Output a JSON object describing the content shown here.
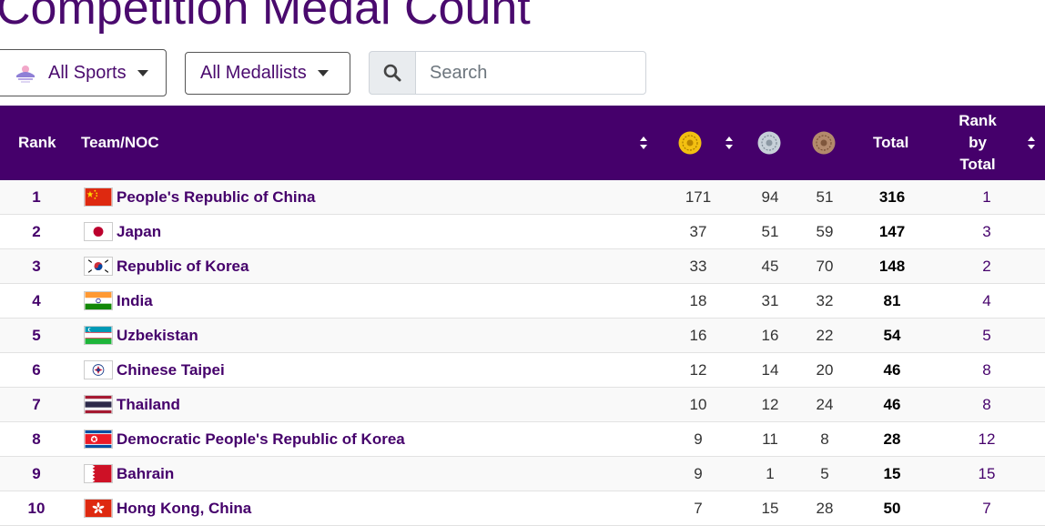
{
  "page": {
    "title": "Competition Medal Count"
  },
  "filters": {
    "sports_label": "All Sports",
    "medallists_label": "All Medallists",
    "search_placeholder": "Search",
    "search_value": ""
  },
  "table": {
    "headers": {
      "rank": "Rank",
      "team": "Team/NOC",
      "gold_icon": "gold-medal-icon",
      "silver_icon": "silver-medal-icon",
      "bronze_icon": "bronze-medal-icon",
      "total": "Total",
      "rank_by_total_1": "Rank",
      "rank_by_total_2": "by",
      "rank_by_total_3": "Total"
    },
    "colors": {
      "header_bg": "#45006b",
      "link": "#45006b",
      "gold": "#f3c011",
      "silver": "#c7d0d8",
      "bronze": "#b38a6c"
    },
    "rows": [
      {
        "rank": "1",
        "team": "People's Republic of China",
        "flag": "china-flag-icon",
        "gold": "171",
        "silver": "94",
        "bronze": "51",
        "total": "316",
        "rank_by_total": "1"
      },
      {
        "rank": "2",
        "team": "Japan",
        "flag": "japan-flag-icon",
        "gold": "37",
        "silver": "51",
        "bronze": "59",
        "total": "147",
        "rank_by_total": "3"
      },
      {
        "rank": "3",
        "team": "Republic of Korea",
        "flag": "korea-flag-icon",
        "gold": "33",
        "silver": "45",
        "bronze": "70",
        "total": "148",
        "rank_by_total": "2"
      },
      {
        "rank": "4",
        "team": "India",
        "flag": "india-flag-icon",
        "gold": "18",
        "silver": "31",
        "bronze": "32",
        "total": "81",
        "rank_by_total": "4"
      },
      {
        "rank": "5",
        "team": "Uzbekistan",
        "flag": "uzbekistan-flag-icon",
        "gold": "16",
        "silver": "16",
        "bronze": "22",
        "total": "54",
        "rank_by_total": "5"
      },
      {
        "rank": "6",
        "team": "Chinese Taipei",
        "flag": "chinese-taipei-flag-icon",
        "gold": "12",
        "silver": "14",
        "bronze": "20",
        "total": "46",
        "rank_by_total": "8"
      },
      {
        "rank": "7",
        "team": "Thailand",
        "flag": "thailand-flag-icon",
        "gold": "10",
        "silver": "12",
        "bronze": "24",
        "total": "46",
        "rank_by_total": "8"
      },
      {
        "rank": "8",
        "team": "Democratic People's Republic of Korea",
        "flag": "dprk-flag-icon",
        "gold": "9",
        "silver": "11",
        "bronze": "8",
        "total": "28",
        "rank_by_total": "12"
      },
      {
        "rank": "9",
        "team": "Bahrain",
        "flag": "bahrain-flag-icon",
        "gold": "9",
        "silver": "1",
        "bronze": "5",
        "total": "15",
        "rank_by_total": "15"
      },
      {
        "rank": "10",
        "team": "Hong Kong, China",
        "flag": "hong-kong-flag-icon",
        "gold": "7",
        "silver": "15",
        "bronze": "28",
        "total": "50",
        "rank_by_total": "7"
      }
    ]
  }
}
